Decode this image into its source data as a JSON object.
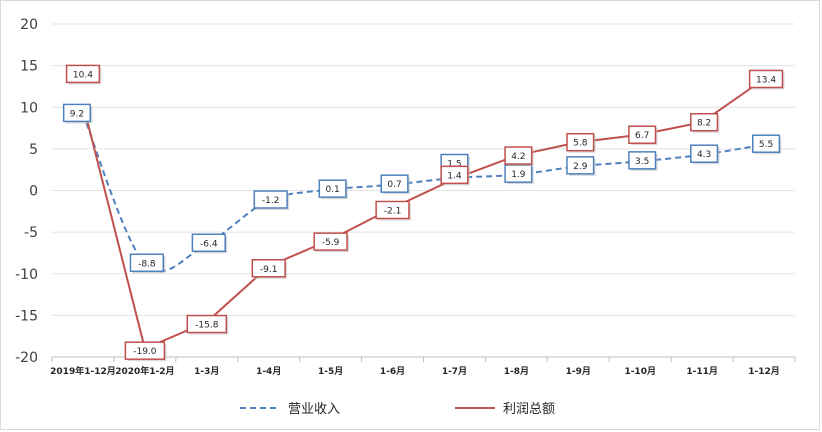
{
  "chart_data": {
    "type": "line",
    "categories": [
      "2019年1-12月",
      "2020年1-2月",
      "1-3月",
      "1-4月",
      "1-5月",
      "1-6月",
      "1-7月",
      "1-8月",
      "1-9月",
      "1-10月",
      "1-11月",
      "1-12月"
    ],
    "ylim": [
      -20,
      20
    ],
    "yticks": [
      20,
      15,
      10,
      5,
      0,
      -5,
      -10,
      -15,
      -20
    ],
    "grid": true,
    "legend_position": "bottom",
    "series": [
      {
        "name": "营业收入",
        "color": "#4f81bd",
        "style": "dashed",
        "values": [
          9.2,
          -8.8,
          -6.4,
          -1.2,
          0.1,
          0.7,
          1.5,
          1.9,
          2.9,
          3.5,
          4.3,
          5.5
        ]
      },
      {
        "name": "利润总额",
        "color": "#c0504d",
        "style": "solid",
        "values": [
          10.4,
          -19.0,
          -15.8,
          -9.1,
          -5.9,
          -2.1,
          1.4,
          4.2,
          5.8,
          6.7,
          8.2,
          13.4
        ]
      }
    ]
  }
}
